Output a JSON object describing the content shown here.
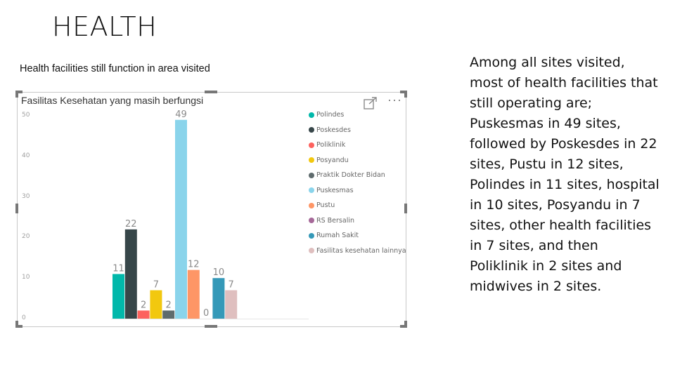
{
  "slide": {
    "title": "HEALTH",
    "chart_caption": "Health facilities still function in area visited",
    "description": "Among all sites visited, most of health facilities that still operating are; Puskesmas in 49 sites, followed by Poskesdes in 22 sites, Pustu in 12 sites, Polindes in 11 sites, hospital in 10 sites, Posyandu in 7 sites, other health facilities in 7 sites, and then Poliklinik in 2 sites and midwives in 2 sites."
  },
  "visual_header": {
    "focus_icon": "focus-mode-icon",
    "more_icon": "more-options-icon",
    "more_glyph": "···"
  },
  "chart_data": {
    "type": "bar",
    "title": "Fasilitas Kesehatan yang masih berfungsi",
    "xlabel": "",
    "ylabel": "",
    "ylim": [
      0,
      50
    ],
    "y_ticks": [
      "0",
      "10",
      "20",
      "30",
      "40",
      "50"
    ],
    "grid": false,
    "legend_position": "right",
    "data_labels": true,
    "series": [
      {
        "name": "Polindes",
        "value": 11,
        "color": "#01b8aa"
      },
      {
        "name": "Poskesdes",
        "value": 22,
        "color": "#374649"
      },
      {
        "name": "Poliklinik",
        "value": 2,
        "color": "#fd625e"
      },
      {
        "name": "Posyandu",
        "value": 7,
        "color": "#f2c80f"
      },
      {
        "name": "Praktik Dokter Bidan",
        "value": 2,
        "color": "#5f6b6d"
      },
      {
        "name": "Puskesmas",
        "value": 49,
        "color": "#8ad4eb"
      },
      {
        "name": "Pustu",
        "value": 12,
        "color": "#fe9666"
      },
      {
        "name": "RS Bersalin",
        "value": 0,
        "color": "#a66999"
      },
      {
        "name": "Rumah Sakit",
        "value": 10,
        "color": "#3599b8"
      },
      {
        "name": "Fasilitas kesehatan lainnya",
        "value": 7,
        "color": "#dfbfbf"
      }
    ]
  }
}
